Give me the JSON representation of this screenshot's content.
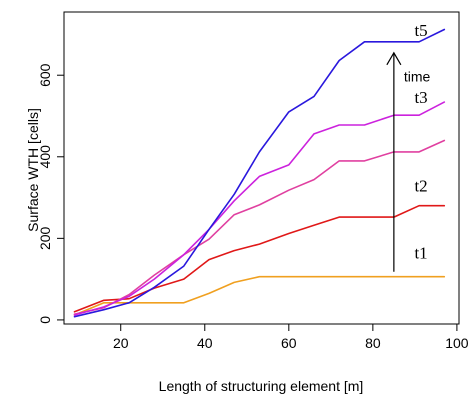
{
  "chart_data": {
    "type": "line",
    "title": "",
    "xlabel": "Length of structuring element [m]",
    "ylabel": "Surface WTH [cells]",
    "xlim": [
      6.5,
      100.5
    ],
    "ylim": [
      -10,
      755
    ],
    "xticks": [
      20,
      40,
      60,
      80,
      100
    ],
    "yticks": [
      0,
      200,
      400,
      600
    ],
    "xtick_labels": [
      "20",
      "40",
      "60",
      "80",
      "100"
    ],
    "ytick_labels": [
      "0",
      "200",
      "400",
      "600"
    ],
    "grid": false,
    "legend": "none",
    "x": [
      9,
      16,
      22,
      28,
      35,
      41,
      47,
      53,
      60,
      66,
      72,
      78,
      85,
      91,
      97
    ],
    "series": [
      {
        "name": "t1",
        "color": "#f0a020",
        "values": [
          12,
          42,
          42,
          42,
          42,
          65,
          92,
          106,
          106,
          106,
          106,
          106,
          106,
          106,
          106
        ]
      },
      {
        "name": "t2",
        "color": "#e01818",
        "values": [
          20,
          48,
          52,
          78,
          100,
          148,
          170,
          186,
          212,
          232,
          252,
          252,
          252,
          280,
          280
        ]
      },
      {
        "name": "",
        "color": "#e040a0",
        "values": [
          14,
          30,
          62,
          110,
          160,
          198,
          258,
          282,
          318,
          344,
          390,
          390,
          412,
          412,
          440
        ]
      },
      {
        "name": "t3",
        "color": "#cc22dd",
        "values": [
          12,
          32,
          58,
          100,
          160,
          222,
          292,
          352,
          380,
          456,
          478,
          478,
          502,
          502,
          534
        ]
      },
      {
        "name": "t5",
        "color": "#2a18dd",
        "values": [
          8,
          25,
          42,
          80,
          132,
          222,
          308,
          412,
          510,
          548,
          636,
          682,
          682,
          682,
          712
        ]
      }
    ],
    "annotations": {
      "arrow_label": "time",
      "arrow_x": 85,
      "arrow_from": 118,
      "arrow_to": 655
    }
  }
}
